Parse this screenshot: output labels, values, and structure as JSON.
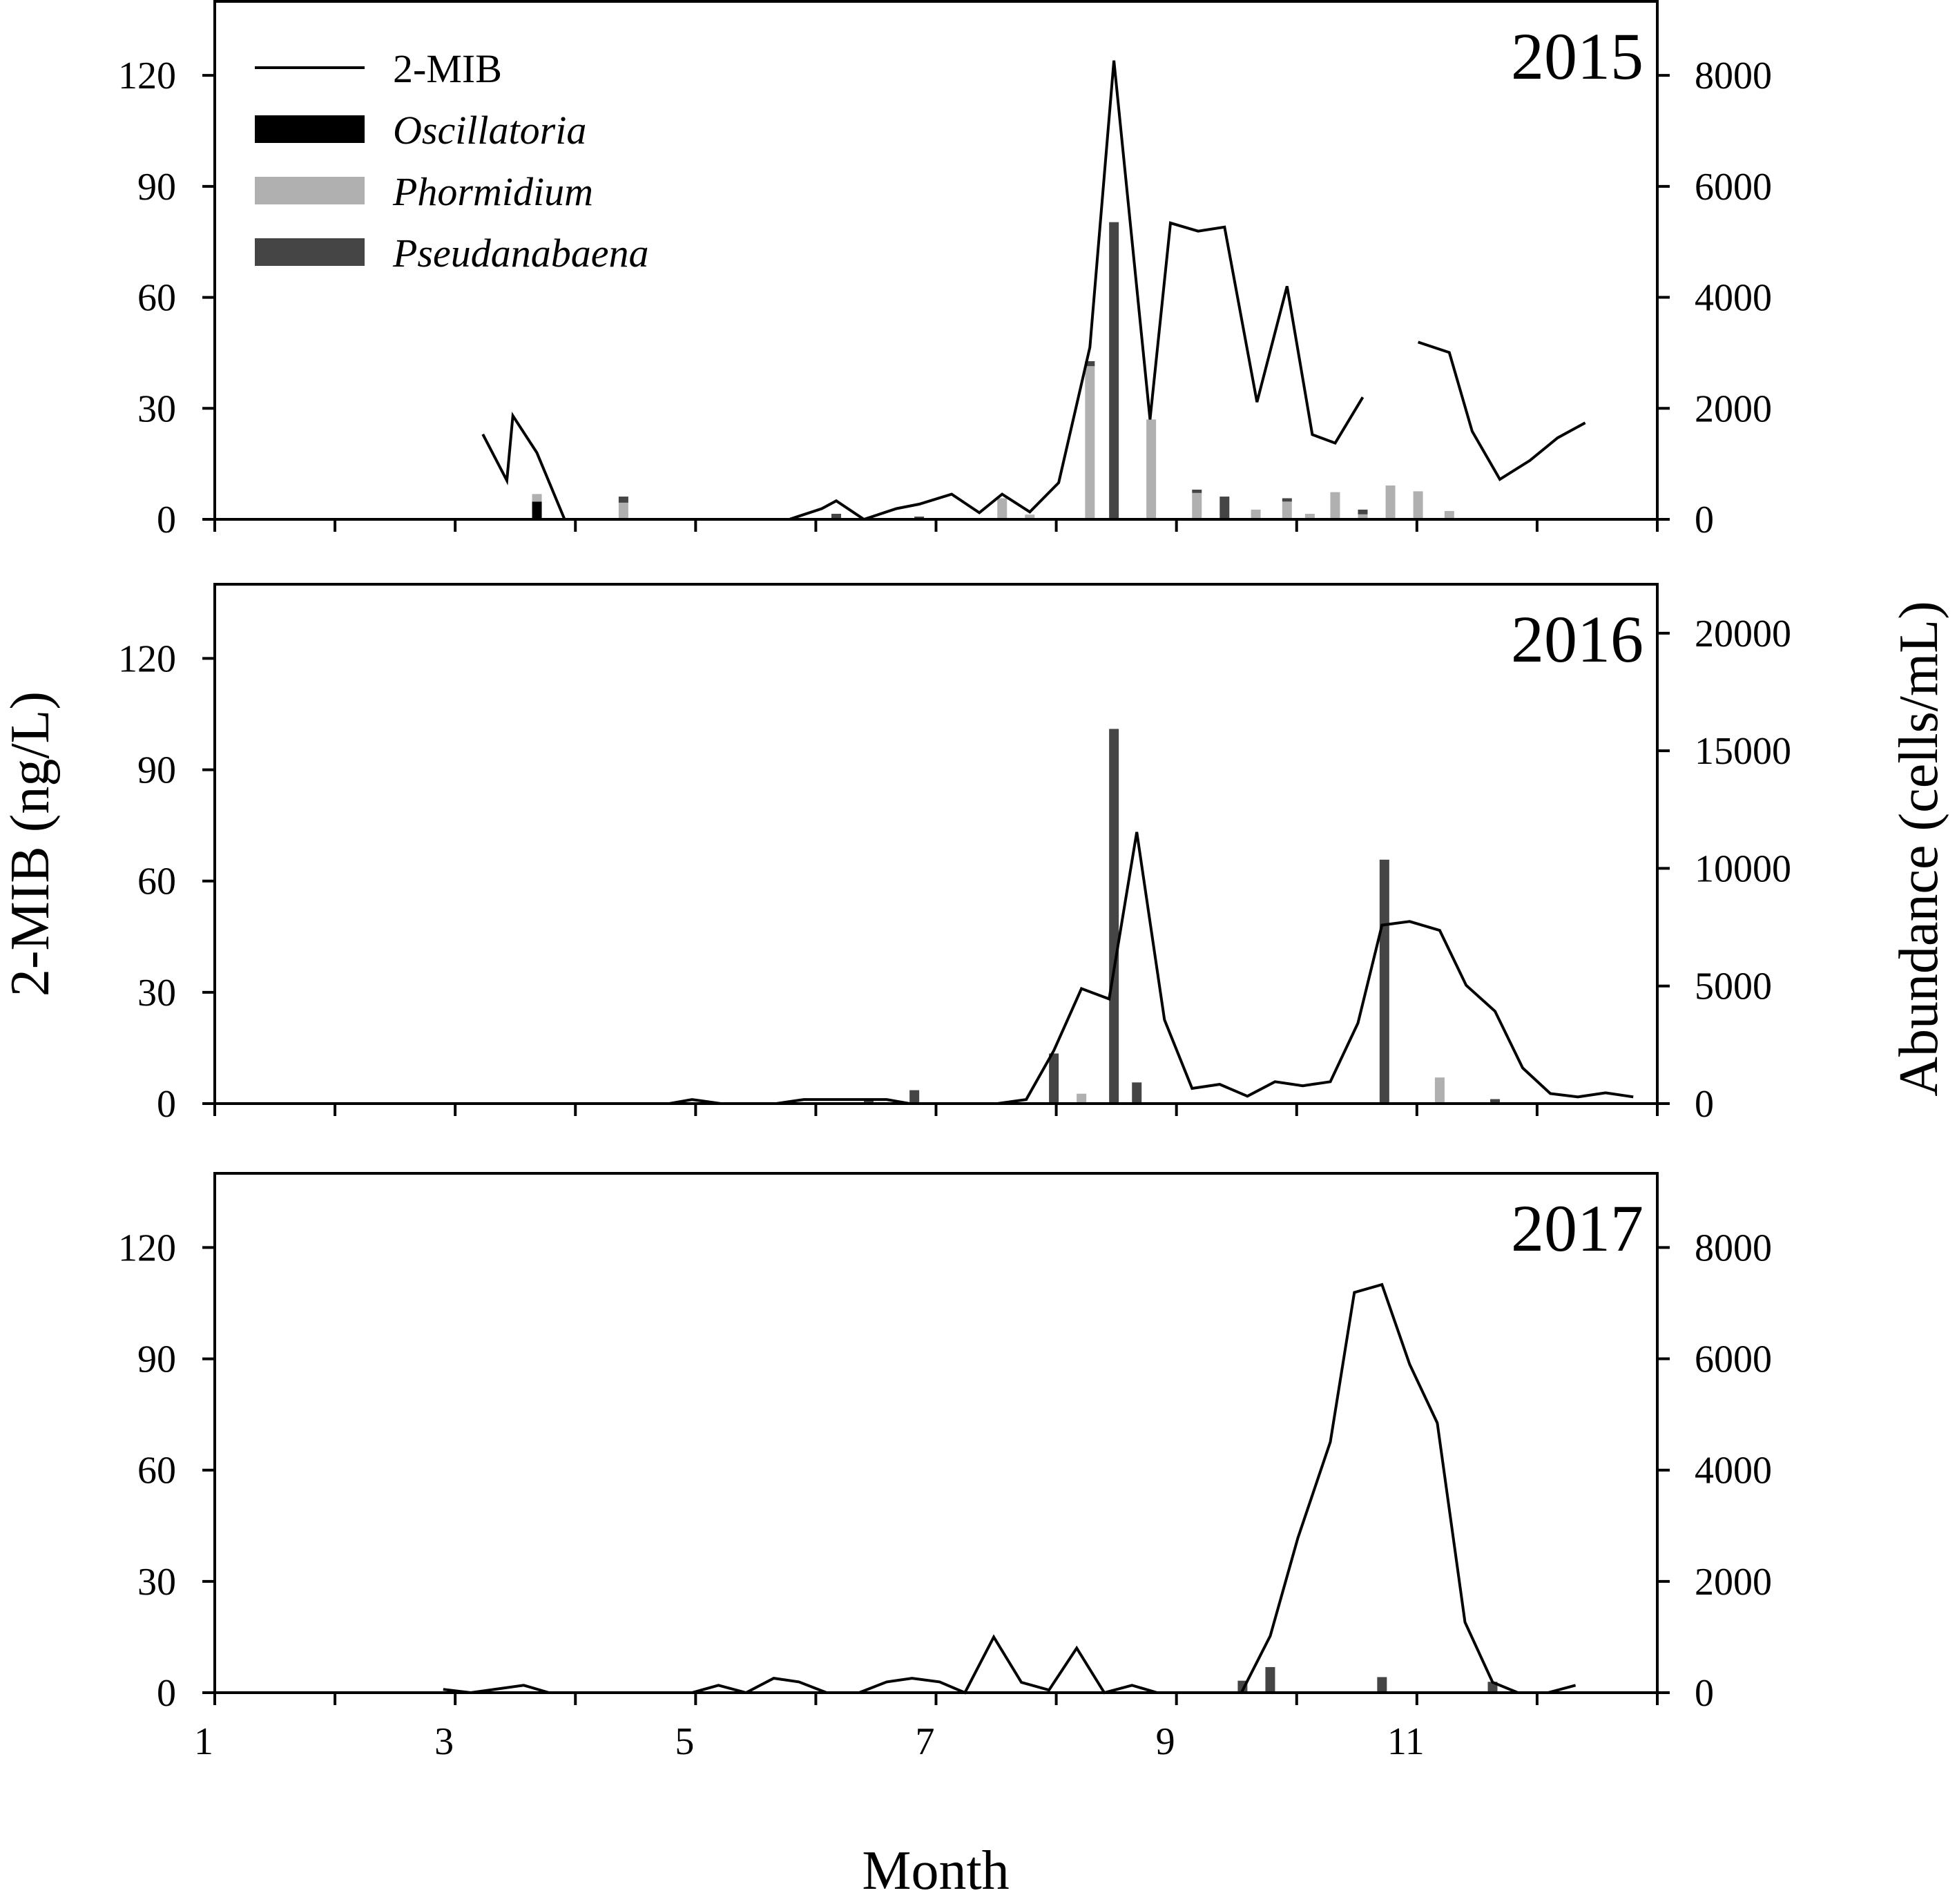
{
  "chart_data": {
    "type": "bar+line",
    "xlabel": "Month",
    "ylabel_left": "2-MIB (ng/L)",
    "ylabel_right": "Abundance (cells/mL)",
    "xlim": [
      1,
      13
    ],
    "x_ticks": [
      "1",
      "3",
      "5",
      "7",
      "9",
      "11"
    ],
    "x_tick_values": [
      1,
      3,
      5,
      7,
      9,
      11
    ],
    "legend": {
      "placement": "top-left",
      "entries": [
        {
          "label": "2-MIB",
          "kind": "line",
          "color": "#000000"
        },
        {
          "label": "Oscillatoria",
          "kind": "bar",
          "color": "#000000"
        },
        {
          "label": "Phormidium",
          "kind": "bar",
          "color": "#b0b0b0"
        },
        {
          "label": "Pseudanabaena",
          "kind": "bar",
          "color": "#454545"
        }
      ]
    },
    "panels": [
      {
        "year": "2015",
        "ylim_left": [
          0,
          140
        ],
        "ylim_right": [
          0,
          9333
        ],
        "left_ticks": [
          "0",
          "30",
          "60",
          "90",
          "120"
        ],
        "left_tick_values": [
          0,
          30,
          60,
          90,
          120
        ],
        "right_ticks": [
          "0",
          "2000",
          "4000",
          "6000",
          "8000"
        ],
        "right_tick_values": [
          0,
          2000,
          4000,
          6000,
          8000
        ],
        "mib_segments": [
          [
            [
              3.23,
              23
            ],
            [
              3.43,
              10.5
            ],
            [
              3.48,
              28
            ],
            [
              3.68,
              18
            ],
            [
              3.91,
              0
            ],
            [
              5.78,
              0
            ],
            [
              6.05,
              2.9
            ],
            [
              6.17,
              5.0
            ],
            [
              6.4,
              0
            ],
            [
              6.67,
              2.9
            ],
            [
              6.86,
              4.1
            ],
            [
              7.13,
              6.8
            ],
            [
              7.36,
              1.8
            ],
            [
              7.55,
              6.8
            ],
            [
              7.78,
              2.0
            ],
            [
              8.02,
              9.9
            ],
            [
              8.28,
              46.5
            ],
            [
              8.48,
              124
            ],
            [
              8.78,
              27
            ],
            [
              8.95,
              80.1
            ],
            [
              9.18,
              77.9
            ],
            [
              9.4,
              79
            ],
            [
              9.67,
              31.7
            ],
            [
              9.92,
              63
            ],
            [
              10.13,
              22.9
            ],
            [
              10.32,
              20.6
            ],
            [
              10.55,
              33
            ]
          ],
          [
            [
              11.01,
              47.9
            ],
            [
              11.27,
              45.1
            ],
            [
              11.46,
              23.8
            ],
            [
              11.69,
              10.8
            ],
            [
              11.94,
              15.9
            ],
            [
              12.17,
              22
            ],
            [
              12.4,
              26.1
            ]
          ]
        ],
        "bars": [
          {
            "month": 3.68,
            "Oscillatoria": 320,
            "Phormidium": 136,
            "Pseudanabaena": 0
          },
          {
            "month": 4.4,
            "Oscillatoria": 0,
            "Phormidium": 300,
            "Pseudanabaena": 110
          },
          {
            "month": 6.17,
            "Oscillatoria": 0,
            "Phormidium": 0,
            "Pseudanabaena": 100
          },
          {
            "month": 6.86,
            "Oscillatoria": 0,
            "Phormidium": 0,
            "Pseudanabaena": 50
          },
          {
            "month": 7.55,
            "Oscillatoria": 0,
            "Phormidium": 380,
            "Pseudanabaena": 0
          },
          {
            "month": 7.78,
            "Oscillatoria": 0,
            "Phormidium": 85,
            "Pseudanabaena": 0
          },
          {
            "month": 8.28,
            "Oscillatoria": 0,
            "Phormidium": 2760,
            "Pseudanabaena": 90
          },
          {
            "month": 8.48,
            "Oscillatoria": 0,
            "Phormidium": 0,
            "Pseudanabaena": 5355
          },
          {
            "month": 8.79,
            "Oscillatoria": 0,
            "Phormidium": 1800,
            "Pseudanabaena": 0
          },
          {
            "month": 9.17,
            "Oscillatoria": 0,
            "Phormidium": 475,
            "Pseudanabaena": 60
          },
          {
            "month": 9.4,
            "Oscillatoria": 0,
            "Phormidium": 0,
            "Pseudanabaena": 410
          },
          {
            "month": 9.66,
            "Oscillatoria": 0,
            "Phormidium": 175,
            "Pseudanabaena": 0
          },
          {
            "month": 9.92,
            "Oscillatoria": 0,
            "Phormidium": 320,
            "Pseudanabaena": 60
          },
          {
            "month": 10.11,
            "Oscillatoria": 0,
            "Phormidium": 100,
            "Pseudanabaena": 0
          },
          {
            "month": 10.32,
            "Oscillatoria": 0,
            "Phormidium": 490,
            "Pseudanabaena": 0
          },
          {
            "month": 10.55,
            "Oscillatoria": 0,
            "Phormidium": 90,
            "Pseudanabaena": 85
          },
          {
            "month": 10.78,
            "Oscillatoria": 0,
            "Phormidium": 610,
            "Pseudanabaena": 0
          },
          {
            "month": 11.01,
            "Oscillatoria": 0,
            "Phormidium": 505,
            "Pseudanabaena": 0
          },
          {
            "month": 11.27,
            "Oscillatoria": 0,
            "Phormidium": 150,
            "Pseudanabaena": 0
          }
        ]
      },
      {
        "year": "2016",
        "ylim_left": [
          0,
          140
        ],
        "ylim_right": [
          0,
          22080
        ],
        "left_ticks": [
          "0",
          "30",
          "60",
          "90",
          "120"
        ],
        "left_tick_values": [
          0,
          30,
          60,
          90,
          120
        ],
        "right_ticks": [
          "0",
          "5000",
          "10000",
          "15000",
          "20000"
        ],
        "right_tick_values": [
          0,
          5000,
          10000,
          15000,
          20000
        ],
        "mib_segments": [
          [
            [
              1,
              0
            ],
            [
              4.78,
              0
            ],
            [
              4.97,
              1.1
            ],
            [
              5.21,
              0
            ],
            [
              5.67,
              0
            ],
            [
              5.9,
              1.1
            ],
            [
              6.59,
              1.1
            ],
            [
              6.78,
              0
            ],
            [
              7.51,
              0
            ],
            [
              7.75,
              1.1
            ],
            [
              7.98,
              14.3
            ],
            [
              8.21,
              31
            ],
            [
              8.44,
              28.2
            ],
            [
              8.67,
              73.2
            ],
            [
              8.9,
              22.6
            ],
            [
              9.13,
              4.1
            ],
            [
              9.36,
              5.2
            ],
            [
              9.59,
              2.0
            ],
            [
              9.82,
              5.9
            ],
            [
              10.05,
              4.8
            ],
            [
              10.28,
              5.9
            ],
            [
              10.51,
              21.7
            ],
            [
              10.71,
              48.1
            ],
            [
              10.94,
              49.1
            ],
            [
              11.19,
              46.7
            ],
            [
              11.41,
              31.9
            ],
            [
              11.65,
              24.9
            ],
            [
              11.88,
              9.6
            ],
            [
              12.11,
              2.7
            ],
            [
              12.34,
              1.8
            ],
            [
              12.57,
              2.9
            ],
            [
              12.8,
              1.8
            ]
          ]
        ],
        "bars": [
          {
            "month": 6.44,
            "Oscillatoria": 0,
            "Phormidium": 0,
            "Pseudanabaena": 200
          },
          {
            "month": 6.82,
            "Oscillatoria": 0,
            "Phormidium": 0,
            "Pseudanabaena": 570
          },
          {
            "month": 7.98,
            "Oscillatoria": 0,
            "Phormidium": 0,
            "Pseudanabaena": 2130
          },
          {
            "month": 8.21,
            "Oscillatoria": 0,
            "Phormidium": 420,
            "Pseudanabaena": 0
          },
          {
            "month": 8.48,
            "Oscillatoria": 0,
            "Phormidium": 0,
            "Pseudanabaena": 15930
          },
          {
            "month": 8.67,
            "Oscillatoria": 0,
            "Phormidium": 0,
            "Pseudanabaena": 900
          },
          {
            "month": 10.73,
            "Oscillatoria": 0,
            "Phormidium": 0,
            "Pseudanabaena": 10370
          },
          {
            "month": 11.19,
            "Oscillatoria": 0,
            "Phormidium": 1110,
            "Pseudanabaena": 0
          },
          {
            "month": 11.65,
            "Oscillatoria": 0,
            "Phormidium": 0,
            "Pseudanabaena": 190
          }
        ]
      },
      {
        "year": "2017",
        "ylim_left": [
          0,
          140
        ],
        "ylim_right": [
          0,
          9333
        ],
        "left_ticks": [
          "0",
          "30",
          "60",
          "90",
          "120"
        ],
        "left_tick_values": [
          0,
          30,
          60,
          90,
          120
        ],
        "right_ticks": [
          "0",
          "2000",
          "4000",
          "6000",
          "8000"
        ],
        "right_tick_values": [
          0,
          2000,
          4000,
          6000,
          8000
        ],
        "mib_segments": [
          [
            [
              2.9,
              0.9
            ],
            [
              3.13,
              0
            ],
            [
              3.57,
              2.0
            ],
            [
              3.78,
              0
            ],
            [
              4.97,
              0
            ],
            [
              5.19,
              2.0
            ],
            [
              5.42,
              0
            ],
            [
              5.65,
              3.9
            ],
            [
              5.86,
              2.9
            ],
            [
              6.09,
              0
            ],
            [
              6.36,
              0
            ],
            [
              6.59,
              2.9
            ],
            [
              6.8,
              3.9
            ],
            [
              7.03,
              2.9
            ],
            [
              7.24,
              0
            ],
            [
              7.48,
              15.0
            ],
            [
              7.71,
              2.8
            ],
            [
              7.94,
              0.7
            ],
            [
              8.17,
              12.0
            ],
            [
              8.4,
              0
            ],
            [
              8.63,
              2.0
            ],
            [
              8.84,
              0
            ],
            [
              9.54,
              0
            ],
            [
              9.78,
              15.3
            ],
            [
              10.01,
              41.7
            ],
            [
              10.28,
              67.6
            ],
            [
              10.48,
              107.9
            ],
            [
              10.71,
              110
            ],
            [
              10.94,
              88.5
            ],
            [
              11.17,
              72.7
            ],
            [
              11.4,
              19
            ],
            [
              11.63,
              2.8
            ],
            [
              11.84,
              0
            ],
            [
              12.09,
              0
            ],
            [
              12.32,
              2.0
            ]
          ]
        ],
        "bars": [
          {
            "month": 9.55,
            "Oscillatoria": 0,
            "Phormidium": 0,
            "Pseudanabaena": 215
          },
          {
            "month": 9.78,
            "Oscillatoria": 0,
            "Phormidium": 0,
            "Pseudanabaena": 460
          },
          {
            "month": 10.71,
            "Oscillatoria": 0,
            "Phormidium": 0,
            "Pseudanabaena": 280
          },
          {
            "month": 11.63,
            "Oscillatoria": 0,
            "Phormidium": 0,
            "Pseudanabaena": 195
          }
        ]
      }
    ]
  }
}
